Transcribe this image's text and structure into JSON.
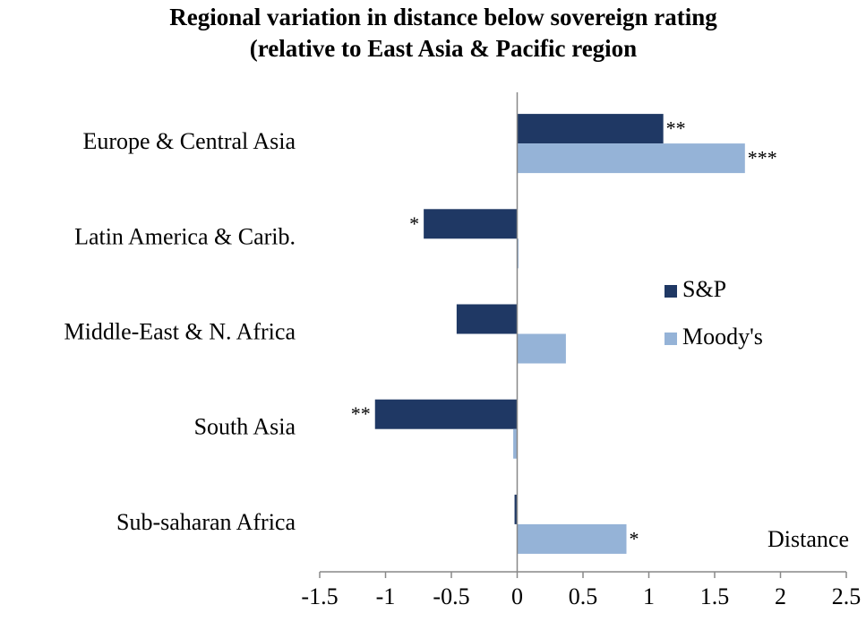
{
  "chart_data": {
    "type": "bar",
    "orientation": "horizontal",
    "title": [
      "Regional variation in distance below sovereign  rating",
      "(relative to East Asia & Pacific region"
    ],
    "x_label": "Distance",
    "categories": [
      "Europe & Central Asia",
      "Latin America & Carib.",
      "Middle-East & N. Africa",
      "South Asia",
      "Sub-saharan Africa"
    ],
    "series": [
      {
        "name": "S&P",
        "color": "#1f3864",
        "values": [
          1.11,
          -0.71,
          -0.46,
          -1.08,
          -0.02
        ],
        "significance": [
          "**",
          "*",
          null,
          "**",
          null
        ]
      },
      {
        "name": "Moody's",
        "color": "#95b3d7",
        "values": [
          1.73,
          0.01,
          0.37,
          -0.03,
          0.83
        ],
        "significance": [
          "***",
          null,
          null,
          null,
          "*"
        ]
      }
    ],
    "xlim": [
      -1.5,
      2.5
    ],
    "xticks": [
      -1.5,
      -1,
      -0.5,
      0,
      0.5,
      1,
      1.5,
      2,
      2.5
    ],
    "grid": false,
    "legend": "right"
  }
}
